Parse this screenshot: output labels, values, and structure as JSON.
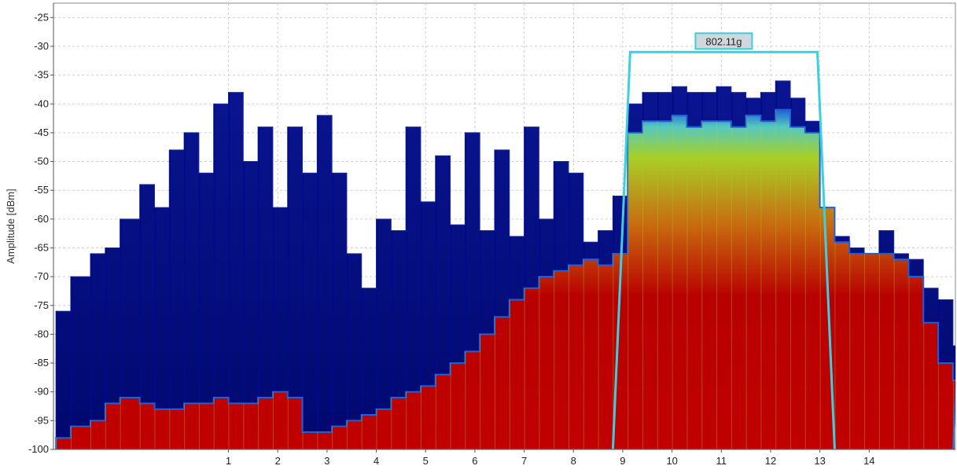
{
  "chart_data": {
    "type": "area",
    "title": "",
    "xlabel": "",
    "ylabel": "Amplitude [dBm]",
    "xlim": [
      -2.55,
      15.75
    ],
    "ylim": [
      -100,
      -22.5
    ],
    "grid": true,
    "x_ticks": [
      1,
      2,
      3,
      4,
      5,
      6,
      7,
      8,
      9,
      10,
      11,
      12,
      13,
      14
    ],
    "y_ticks": [
      -25,
      -30,
      -35,
      -40,
      -45,
      -50,
      -55,
      -60,
      -65,
      -70,
      -75,
      -80,
      -85,
      -90,
      -95,
      -100
    ],
    "colors": {
      "peak_hold": "#000b8c",
      "peak_edge": "#1d2a9e",
      "density_low": "#1f5fd8",
      "density_mid": "#55c8c0",
      "density_high": "#a8d028",
      "density_max": "#b80000",
      "channel_outline": "#3ccfe0",
      "grid": "#d0d0d0"
    },
    "series": [
      {
        "name": "",
        "role": "max-hold",
        "x": [
          -2.5,
          -2.2,
          -1.8,
          -1.5,
          -1.2,
          -0.8,
          -0.5,
          -0.2,
          0.1,
          0.4,
          0.7,
          1.0,
          1.3,
          1.6,
          1.9,
          2.2,
          2.5,
          2.8,
          3.1,
          3.4,
          3.7,
          4.0,
          4.3,
          4.6,
          4.9,
          5.2,
          5.5,
          5.8,
          6.1,
          6.4,
          6.7,
          7.0,
          7.3,
          7.6,
          7.9,
          8.2,
          8.5,
          8.8,
          9.1,
          9.4,
          9.7,
          10.0,
          10.3,
          10.6,
          10.9,
          11.2,
          11.5,
          11.8,
          12.1,
          12.4,
          12.7,
          13.0,
          13.3,
          13.6,
          13.9,
          14.2,
          14.5,
          14.8,
          15.1,
          15.4,
          15.7
        ],
        "y": [
          -76,
          -70,
          -66,
          -65,
          -60,
          -54,
          -58,
          -48,
          -45,
          -52,
          -40,
          -38,
          -50,
          -44,
          -58,
          -44,
          -52,
          -42,
          -52,
          -66,
          -72,
          -60,
          -62,
          -44,
          -57,
          -49,
          -61,
          -45,
          -62,
          -48,
          -63,
          -44,
          -60,
          -50,
          -52,
          -64,
          -62,
          -56,
          -40,
          -38,
          -38,
          -37,
          -38,
          -38,
          -37,
          -38,
          -39,
          -38,
          -36,
          -39,
          -43,
          -58,
          -63,
          -65,
          -66,
          -62,
          -66,
          -67,
          -72,
          -74,
          -82
        ]
      },
      {
        "name": "",
        "role": "density-edge",
        "x": [
          -2.5,
          -2.2,
          -1.8,
          -1.5,
          -1.2,
          -0.8,
          -0.5,
          -0.2,
          0.1,
          0.4,
          0.7,
          1.0,
          1.3,
          1.6,
          1.9,
          2.2,
          2.5,
          2.8,
          3.1,
          3.4,
          3.7,
          4.0,
          4.3,
          4.6,
          4.9,
          5.2,
          5.5,
          5.8,
          6.1,
          6.4,
          6.7,
          7.0,
          7.3,
          7.6,
          7.9,
          8.2,
          8.5,
          8.8,
          9.1,
          9.4,
          9.7,
          10.0,
          10.3,
          10.6,
          10.9,
          11.2,
          11.5,
          11.8,
          12.1,
          12.4,
          12.7,
          13.0,
          13.3,
          13.6,
          13.9,
          14.2,
          14.5,
          14.8,
          15.1,
          15.4,
          15.7
        ],
        "y": [
          -98,
          -96,
          -95,
          -92,
          -91,
          -92,
          -93,
          -93,
          -92,
          -92,
          -91,
          -92,
          -92,
          -91,
          -90,
          -91,
          -97,
          -97,
          -96,
          -95,
          -94,
          -93,
          -91,
          -90,
          -89,
          -87,
          -85,
          -83,
          -80,
          -77,
          -74,
          -72,
          -70,
          -69,
          -68,
          -67,
          -68,
          -66,
          -45,
          -43,
          -43,
          -42,
          -44,
          -43,
          -43,
          -44,
          -42,
          -43,
          -41,
          -44,
          -45,
          -58,
          -64,
          -66,
          -66,
          -66,
          -67,
          -70,
          -78,
          -85,
          -88
        ]
      }
    ],
    "annotations": [
      {
        "label": "802.11g",
        "kind": "channel-mask",
        "x": [
          8.8,
          9.15,
          12.95,
          13.3
        ],
        "y": [
          -100,
          -31,
          -31,
          -100
        ]
      }
    ]
  }
}
